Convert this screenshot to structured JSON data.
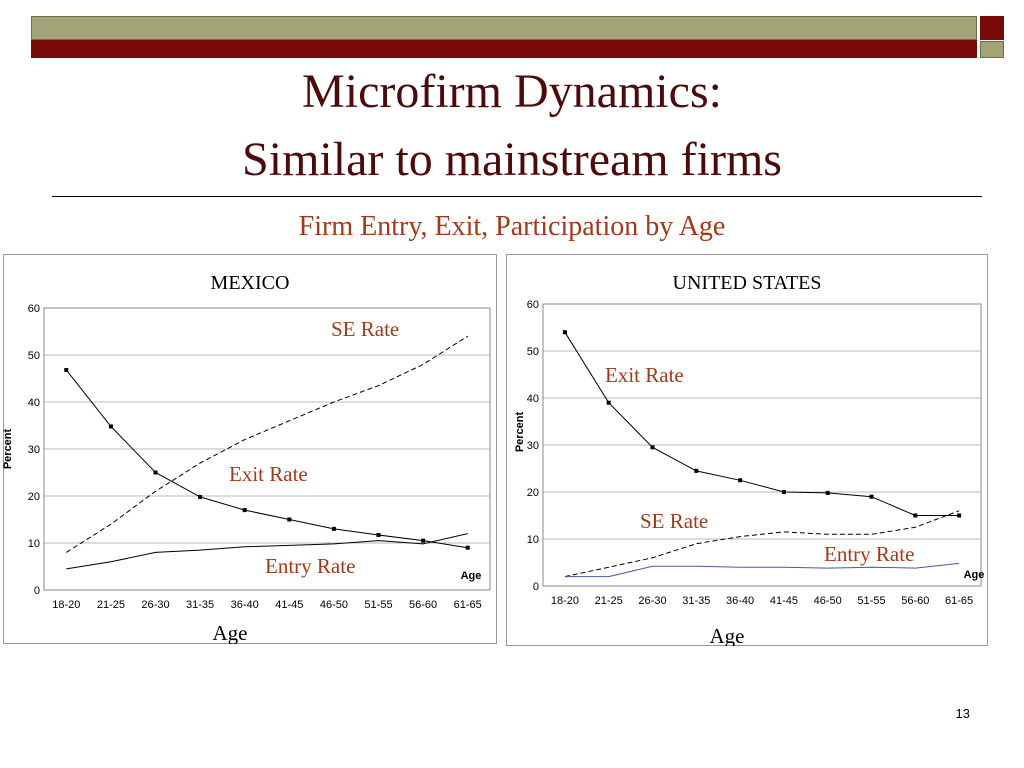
{
  "slide": {
    "title_line1": "Microfirm Dynamics:",
    "title_line2": "Similar to mainstream firms",
    "subtitle": "Firm Entry, Exit, Participation by Age",
    "page_number": "13"
  },
  "colors": {
    "title": "#4d0a0a",
    "subtitle": "#a23a1a",
    "annotation": "#a23a1a",
    "band_olive": "#a3a378",
    "band_maroon": "#7a0a0a"
  },
  "chart_data": [
    {
      "type": "line",
      "title": "MEXICO",
      "xlabel": "Age",
      "x_axis_tag": "Age",
      "ylabel": "Percent",
      "ylim": [
        0,
        60
      ],
      "yticks": [
        "0",
        "10",
        "20",
        "30",
        "40",
        "50",
        "60"
      ],
      "categories": [
        "18-20",
        "21-25",
        "26-30",
        "31-35",
        "36-40",
        "41-45",
        "46-50",
        "51-55",
        "56-60",
        "61-65"
      ],
      "grid": true,
      "series": [
        {
          "name": "Exit Rate",
          "style": "solid-markers",
          "color": "#000000",
          "values": [
            46.8,
            34.8,
            25.0,
            19.8,
            17.0,
            15.0,
            13.0,
            11.7,
            10.5,
            9.0
          ]
        },
        {
          "name": "SE Rate",
          "style": "dashed",
          "color": "#000000",
          "values": [
            8.0,
            14.0,
            21.0,
            27.0,
            32.0,
            36.0,
            40.0,
            43.5,
            48.0,
            54.0
          ]
        },
        {
          "name": "Entry Rate",
          "style": "solid",
          "color": "#000000",
          "values": [
            4.5,
            6.0,
            8.0,
            8.5,
            9.2,
            9.5,
            9.8,
            10.5,
            9.8,
            12.0
          ]
        }
      ],
      "annotations": [
        {
          "text": "SE Rate",
          "series": "SE Rate"
        },
        {
          "text": "Exit Rate",
          "series": "Exit Rate"
        },
        {
          "text": "Entry Rate",
          "series": "Entry Rate"
        }
      ]
    },
    {
      "type": "line",
      "title": "UNITED STATES",
      "xlabel": "Age",
      "x_axis_tag": "Age",
      "ylabel": "Percent",
      "ylim": [
        0,
        60
      ],
      "yticks": [
        "0",
        "10",
        "20",
        "30",
        "40",
        "50",
        "60"
      ],
      "categories": [
        "18-20",
        "21-25",
        "26-30",
        "31-35",
        "36-40",
        "41-45",
        "46-50",
        "51-55",
        "56-60",
        "61-65"
      ],
      "grid": true,
      "series": [
        {
          "name": "Exit Rate",
          "style": "solid-markers",
          "color": "#000000",
          "values": [
            54.0,
            39.0,
            29.5,
            24.5,
            22.5,
            20.0,
            19.8,
            19.0,
            15.0,
            15.0
          ]
        },
        {
          "name": "SE Rate",
          "style": "dashed",
          "color": "#000000",
          "values": [
            2.0,
            4.0,
            6.0,
            9.0,
            10.5,
            11.5,
            11.0,
            11.0,
            12.5,
            16.0
          ]
        },
        {
          "name": "Entry Rate",
          "style": "solid",
          "color": "#4a5aa0",
          "values": [
            2.0,
            2.0,
            4.2,
            4.2,
            4.0,
            4.0,
            3.8,
            4.0,
            3.8,
            4.8
          ]
        }
      ],
      "annotations": [
        {
          "text": "Exit Rate",
          "series": "Exit Rate"
        },
        {
          "text": "SE Rate",
          "series": "SE Rate"
        },
        {
          "text": "Entry Rate",
          "series": "Entry Rate"
        }
      ]
    }
  ]
}
